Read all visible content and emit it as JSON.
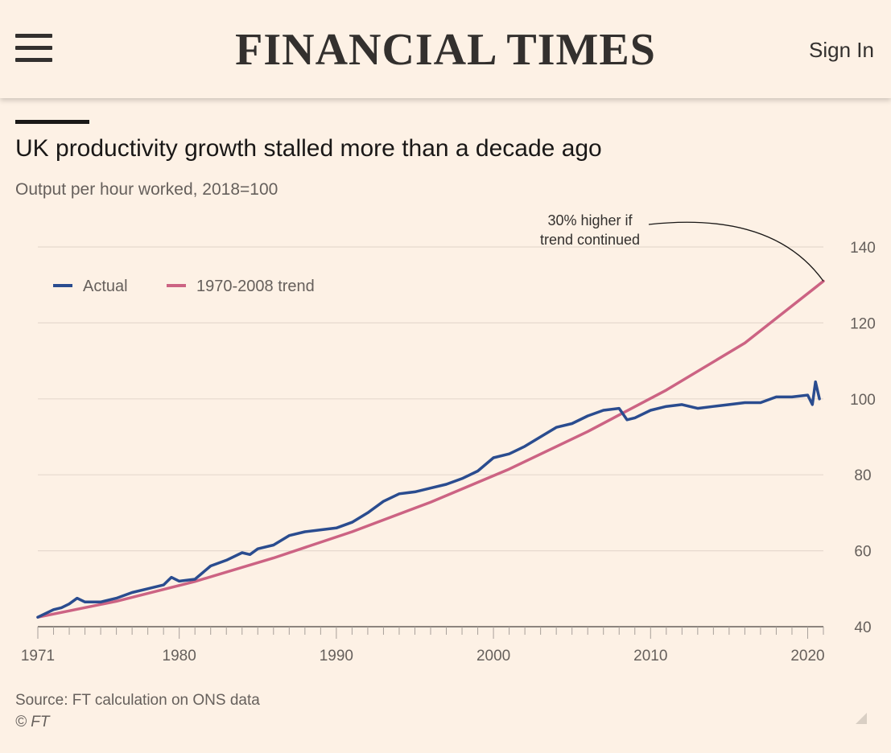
{
  "header": {
    "brand": "FINANCIAL TIMES",
    "sign_in_label": "Sign In",
    "menu_icon": "hamburger-menu-icon"
  },
  "article": {
    "title": "UK productivity growth stalled more than a decade ago",
    "subtitle": "Output per hour worked, 2018=100",
    "source": "Source: FT calculation on ONS data",
    "copyright": "© FT"
  },
  "chart_data": {
    "type": "line",
    "xlim": [
      1971,
      2021
    ],
    "ylim": [
      40,
      140
    ],
    "x_ticks": [
      1971,
      1980,
      1990,
      2000,
      2010,
      2020
    ],
    "y_ticks": [
      40,
      60,
      80,
      100,
      120,
      140
    ],
    "grid": "horizontal",
    "y_axis_side": "right",
    "legend_position": "top-left",
    "annotation": {
      "lines": [
        "30% higher if",
        "trend continued"
      ],
      "points_to": {
        "x": 2021,
        "y": 131
      }
    },
    "series": [
      {
        "name": "Actual",
        "color": "#2a4c8f",
        "x": [
          1971,
          1972,
          1972.5,
          1973,
          1973.5,
          1974,
          1975,
          1976,
          1977,
          1978,
          1979,
          1979.5,
          1980,
          1981,
          1982,
          1983,
          1984,
          1984.5,
          1985,
          1986,
          1987,
          1988,
          1989,
          1990,
          1991,
          1992,
          1993,
          1994,
          1995,
          1996,
          1997,
          1998,
          1999,
          2000,
          2001,
          2002,
          2003,
          2004,
          2005,
          2006,
          2007,
          2008,
          2008.5,
          2009,
          2010,
          2011,
          2012,
          2013,
          2014,
          2015,
          2016,
          2017,
          2018,
          2019,
          2020,
          2020.3,
          2020.5,
          2020.75
        ],
        "values": [
          42.5,
          44.5,
          45,
          46,
          47.5,
          46.5,
          46.5,
          47.5,
          49,
          50,
          51,
          53,
          52,
          52.5,
          56,
          57.5,
          59.5,
          59,
          60.5,
          61.5,
          64,
          65,
          65.5,
          66,
          67.5,
          70,
          73,
          75,
          75.5,
          76.5,
          77.5,
          79,
          81,
          84.5,
          85.5,
          87.5,
          90,
          92.5,
          93.5,
          95.5,
          97,
          97.5,
          94.5,
          95,
          97,
          98,
          98.5,
          97.5,
          98,
          98.5,
          99,
          99,
          100.5,
          100.5,
          101,
          98.5,
          104.5,
          100
        ]
      },
      {
        "name": "1970-2008 trend",
        "color": "#cc6383",
        "x": [
          1971,
          1976,
          1981,
          1986,
          1991,
          1996,
          2001,
          2006,
          2011,
          2016,
          2021
        ],
        "values": [
          42.5,
          46.7,
          51.9,
          58.1,
          65.0,
          72.8,
          81.5,
          91.4,
          102.3,
          114.7,
          131.0
        ]
      }
    ]
  }
}
